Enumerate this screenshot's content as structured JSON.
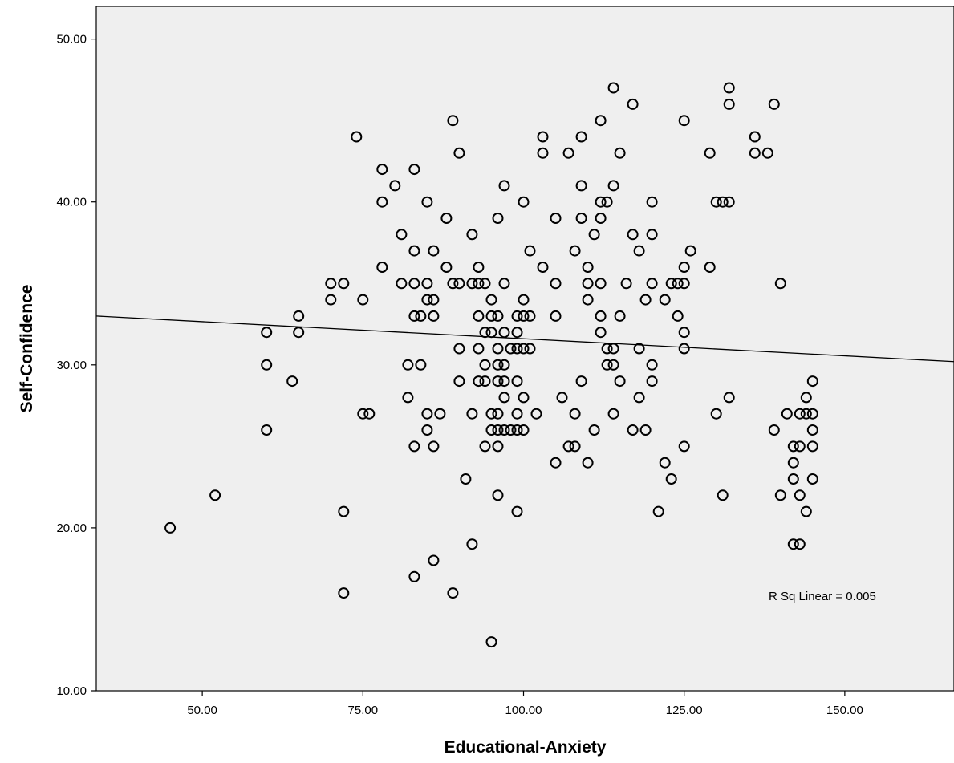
{
  "chart_data": {
    "type": "scatter",
    "xlabel": "Educational-Anxiety",
    "ylabel": "Self-Confidence",
    "xlim": [
      33.5,
      167
    ],
    "ylim": [
      10,
      52
    ],
    "xticks": [
      50,
      75,
      100,
      125,
      150
    ],
    "xtick_labels": [
      "50.00",
      "75.00",
      "100.00",
      "125.00",
      "150.00"
    ],
    "yticks": [
      10,
      20,
      30,
      40,
      50
    ],
    "ytick_labels": [
      "10.00",
      "20.00",
      "30.00",
      "40.00",
      "50.00"
    ],
    "grid": false,
    "colors": {
      "plot_background": "#efefef",
      "marker": "#000000",
      "line": "#000000"
    },
    "fit_line": {
      "x": [
        33.5,
        167
      ],
      "y": [
        33.0,
        30.2
      ]
    },
    "annotation": "R Sq Linear = 0.005",
    "points": [
      [
        45,
        20
      ],
      [
        52,
        22
      ],
      [
        60,
        32
      ],
      [
        60,
        30
      ],
      [
        60,
        26
      ],
      [
        64,
        29
      ],
      [
        65,
        33
      ],
      [
        65,
        32
      ],
      [
        70,
        35
      ],
      [
        70,
        34
      ],
      [
        72,
        35
      ],
      [
        72,
        21
      ],
      [
        72,
        16
      ],
      [
        74,
        44
      ],
      [
        75,
        34
      ],
      [
        75,
        27
      ],
      [
        76,
        27
      ],
      [
        78,
        42
      ],
      [
        78,
        40
      ],
      [
        78,
        36
      ],
      [
        80,
        41
      ],
      [
        81,
        38
      ],
      [
        81,
        35
      ],
      [
        82,
        30
      ],
      [
        82,
        28
      ],
      [
        83,
        42
      ],
      [
        83,
        37
      ],
      [
        83,
        35
      ],
      [
        83,
        33
      ],
      [
        83,
        25
      ],
      [
        83,
        17
      ],
      [
        84,
        33
      ],
      [
        84,
        30
      ],
      [
        85,
        40
      ],
      [
        85,
        35
      ],
      [
        85,
        34
      ],
      [
        85,
        27
      ],
      [
        85,
        26
      ],
      [
        86,
        37
      ],
      [
        86,
        34
      ],
      [
        86,
        33
      ],
      [
        86,
        25
      ],
      [
        86,
        18
      ],
      [
        87,
        27
      ],
      [
        88,
        39
      ],
      [
        88,
        36
      ],
      [
        89,
        45
      ],
      [
        89,
        35
      ],
      [
        89,
        16
      ],
      [
        90,
        43
      ],
      [
        90,
        35
      ],
      [
        90,
        31
      ],
      [
        90,
        29
      ],
      [
        91,
        23
      ],
      [
        92,
        38
      ],
      [
        92,
        35
      ],
      [
        92,
        27
      ],
      [
        92,
        19
      ],
      [
        93,
        36
      ],
      [
        93,
        35
      ],
      [
        93,
        33
      ],
      [
        93,
        31
      ],
      [
        93,
        29
      ],
      [
        94,
        35
      ],
      [
        94,
        32
      ],
      [
        94,
        30
      ],
      [
        94,
        29
      ],
      [
        94,
        25
      ],
      [
        95,
        34
      ],
      [
        95,
        33
      ],
      [
        95,
        32
      ],
      [
        95,
        27
      ],
      [
        95,
        26
      ],
      [
        95,
        13
      ],
      [
        96,
        39
      ],
      [
        96,
        33
      ],
      [
        96,
        31
      ],
      [
        96,
        30
      ],
      [
        96,
        29
      ],
      [
        96,
        27
      ],
      [
        96,
        26
      ],
      [
        96,
        25
      ],
      [
        96,
        22
      ],
      [
        97,
        41
      ],
      [
        97,
        35
      ],
      [
        97,
        32
      ],
      [
        97,
        30
      ],
      [
        97,
        29
      ],
      [
        97,
        28
      ],
      [
        97,
        26
      ],
      [
        98,
        31
      ],
      [
        98,
        26
      ],
      [
        99,
        33
      ],
      [
        99,
        32
      ],
      [
        99,
        31
      ],
      [
        99,
        29
      ],
      [
        99,
        27
      ],
      [
        99,
        26
      ],
      [
        99,
        21
      ],
      [
        100,
        40
      ],
      [
        100,
        34
      ],
      [
        100,
        33
      ],
      [
        100,
        31
      ],
      [
        100,
        28
      ],
      [
        100,
        26
      ],
      [
        101,
        37
      ],
      [
        101,
        33
      ],
      [
        101,
        31
      ],
      [
        102,
        27
      ],
      [
        103,
        44
      ],
      [
        103,
        43
      ],
      [
        103,
        36
      ],
      [
        105,
        39
      ],
      [
        105,
        35
      ],
      [
        105,
        33
      ],
      [
        105,
        24
      ],
      [
        106,
        28
      ],
      [
        107,
        43
      ],
      [
        107,
        25
      ],
      [
        108,
        37
      ],
      [
        108,
        27
      ],
      [
        108,
        25
      ],
      [
        109,
        44
      ],
      [
        109,
        41
      ],
      [
        109,
        39
      ],
      [
        109,
        29
      ],
      [
        110,
        36
      ],
      [
        110,
        35
      ],
      [
        110,
        34
      ],
      [
        110,
        24
      ],
      [
        111,
        38
      ],
      [
        111,
        26
      ],
      [
        112,
        45
      ],
      [
        112,
        40
      ],
      [
        112,
        39
      ],
      [
        112,
        35
      ],
      [
        112,
        33
      ],
      [
        112,
        32
      ],
      [
        113,
        40
      ],
      [
        113,
        31
      ],
      [
        113,
        30
      ],
      [
        114,
        47
      ],
      [
        114,
        41
      ],
      [
        114,
        31
      ],
      [
        114,
        30
      ],
      [
        114,
        27
      ],
      [
        115,
        43
      ],
      [
        115,
        33
      ],
      [
        115,
        29
      ],
      [
        116,
        35
      ],
      [
        117,
        46
      ],
      [
        117,
        38
      ],
      [
        117,
        26
      ],
      [
        118,
        37
      ],
      [
        118,
        31
      ],
      [
        118,
        28
      ],
      [
        119,
        34
      ],
      [
        119,
        26
      ],
      [
        120,
        40
      ],
      [
        120,
        38
      ],
      [
        120,
        35
      ],
      [
        120,
        30
      ],
      [
        120,
        29
      ],
      [
        121,
        21
      ],
      [
        122,
        34
      ],
      [
        122,
        24
      ],
      [
        123,
        35
      ],
      [
        123,
        23
      ],
      [
        124,
        35
      ],
      [
        124,
        33
      ],
      [
        125,
        45
      ],
      [
        125,
        36
      ],
      [
        125,
        35
      ],
      [
        125,
        32
      ],
      [
        125,
        31
      ],
      [
        125,
        25
      ],
      [
        126,
        37
      ],
      [
        129,
        43
      ],
      [
        129,
        36
      ],
      [
        130,
        40
      ],
      [
        130,
        27
      ],
      [
        131,
        40
      ],
      [
        131,
        22
      ],
      [
        132,
        47
      ],
      [
        132,
        46
      ],
      [
        132,
        40
      ],
      [
        132,
        28
      ],
      [
        136,
        44
      ],
      [
        136,
        43
      ],
      [
        138,
        43
      ],
      [
        139,
        46
      ],
      [
        139,
        26
      ],
      [
        140,
        35
      ],
      [
        140,
        22
      ],
      [
        141,
        27
      ],
      [
        142,
        25
      ],
      [
        142,
        24
      ],
      [
        142,
        23
      ],
      [
        142,
        19
      ],
      [
        143,
        27
      ],
      [
        143,
        25
      ],
      [
        143,
        22
      ],
      [
        143,
        19
      ],
      [
        144,
        28
      ],
      [
        144,
        27
      ],
      [
        144,
        21
      ],
      [
        145,
        29
      ],
      [
        145,
        27
      ],
      [
        145,
        26
      ],
      [
        145,
        25
      ],
      [
        145,
        23
      ]
    ]
  }
}
